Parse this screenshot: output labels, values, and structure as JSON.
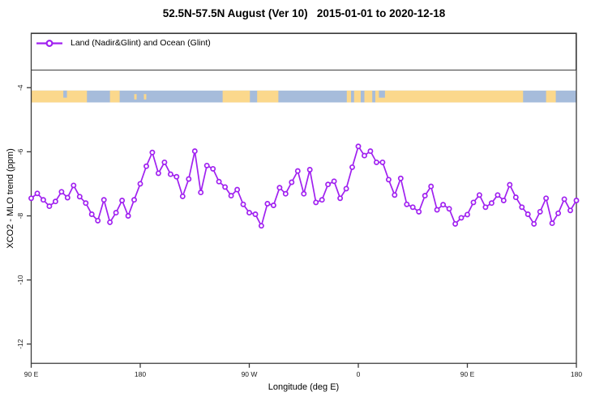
{
  "page": {
    "background": "#ffffff"
  },
  "chart_data": {
    "type": "line",
    "title": "52.5N-57.5N August (Ver 10)   2015-01-01 to 2020-12-18",
    "xlabel": "Longitude (deg E)",
    "ylabel": "XCO2 - MLO trend (ppm)",
    "grid": false,
    "legend_position": "top-left-full-width-box",
    "axis_color": "#3c3c3c",
    "tick_label_color": "#1a1a1a",
    "x_axis": {
      "note": "longitude increases eastward from 90E wrapping around the globe to 180",
      "domain_deg_east": [
        90,
        540
      ],
      "tick_positions_deg": [
        90,
        180,
        270,
        360,
        450,
        540
      ],
      "tick_labels": [
        "90 E",
        "180",
        "90 W",
        "0",
        "90 E",
        "180"
      ]
    },
    "y_axis": {
      "range": [
        -12.6,
        -2.3
      ],
      "tick_positions": [
        -4,
        -6,
        -8,
        -10,
        -12
      ],
      "tick_labels": [
        "-4",
        "-6",
        "-8",
        "-10",
        "-12"
      ]
    },
    "map_band": {
      "description": "latitude-band world map strip 52.5N-57.5N",
      "value_top": -4.09,
      "value_bottom": -4.46,
      "ocean_color": "#a6bcdb",
      "land_color": "#fbd88c",
      "land_segments_deg": [
        [
          90,
          136
        ],
        [
          155,
          163
        ],
        [
          248,
          270.5
        ],
        [
          276.5,
          294
        ],
        [
          350.5,
          354
        ],
        [
          356.5,
          362
        ],
        [
          365,
          371.5
        ],
        [
          374,
          496
        ],
        [
          515,
          523
        ]
      ],
      "ocean_patches_deg": [
        [
          116.5,
          119.5
        ],
        [
          377,
          382
        ]
      ],
      "island_specks_deg": [
        [
          175,
          177
        ],
        [
          183,
          185
        ]
      ]
    },
    "series": [
      {
        "name": "Land (Nadir&Glint) and Ocean (Glint)",
        "color": "#a020f0",
        "marker": "open-circle",
        "x_start_deg": 90,
        "x_step_deg": 5,
        "values": [
          -7.45,
          -7.3,
          -7.5,
          -7.7,
          -7.55,
          -7.25,
          -7.43,
          -7.05,
          -7.4,
          -7.6,
          -7.95,
          -8.15,
          -7.5,
          -8.2,
          -7.9,
          -7.52,
          -8.0,
          -7.5,
          -7.0,
          -6.45,
          -6.02,
          -6.67,
          -6.33,
          -6.7,
          -6.78,
          -7.39,
          -6.85,
          -5.98,
          -7.27,
          -6.43,
          -6.53,
          -6.93,
          -7.1,
          -7.37,
          -7.18,
          -7.64,
          -7.9,
          -7.95,
          -8.31,
          -7.62,
          -7.67,
          -7.12,
          -7.31,
          -6.95,
          -6.6,
          -7.31,
          -6.56,
          -7.58,
          -7.5,
          -7.02,
          -6.92,
          -7.45,
          -7.15,
          -6.48,
          -5.83,
          -6.12,
          -5.98,
          -6.33,
          -6.33,
          -6.87,
          -7.35,
          -6.83,
          -7.64,
          -7.73,
          -7.87,
          -7.37,
          -7.08,
          -7.81,
          -7.65,
          -7.78,
          -8.25,
          -8.06,
          -7.96,
          -7.58,
          -7.35,
          -7.73,
          -7.6,
          -7.35,
          -7.52,
          -7.03,
          -7.42,
          -7.73,
          -7.95,
          -8.25,
          -7.87,
          -7.45,
          -8.23,
          -7.92,
          -7.48,
          -7.83,
          -7.52
        ]
      }
    ]
  }
}
